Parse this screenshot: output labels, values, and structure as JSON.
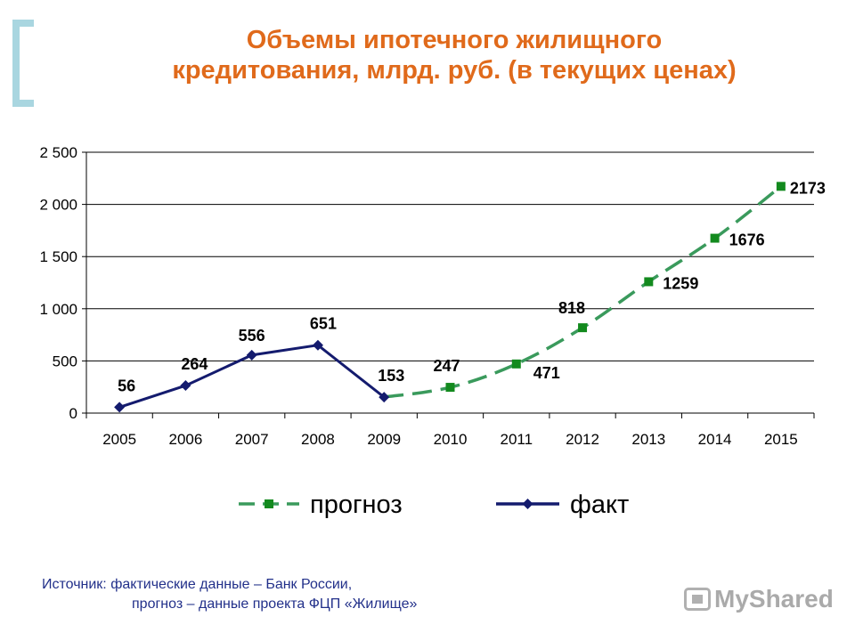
{
  "title": {
    "line1": "Объемы ипотечного жилищного",
    "line2": "кредитования, млрд. руб. (в текущих ценах)"
  },
  "source": {
    "line1": "Источник: фактические данные – Банк России,",
    "line2": "прогноз – данные проекта ФЦП «Жилище»"
  },
  "logo": {
    "text": "MyShared",
    "icon": "presentation-board-icon"
  },
  "chart_data": {
    "type": "line",
    "title": "Объемы ипотечного жилищного кредитования, млрд. руб. (в текущих ценах)",
    "categories": [
      "2005",
      "2006",
      "2007",
      "2008",
      "2009",
      "2010",
      "2011",
      "2012",
      "2013",
      "2014",
      "2015"
    ],
    "ylim": [
      0,
      2500
    ],
    "yticks": [
      0,
      500,
      1000,
      1500,
      2000,
      2500
    ],
    "ytick_labels": [
      "0",
      "500",
      "1 000",
      "1 500",
      "2 000",
      "2 500"
    ],
    "grid": true,
    "legend": "bottom",
    "series": [
      {
        "name": "прогноз",
        "color": "#3a9a5c",
        "marker": "square",
        "marker_color": "#138a1e",
        "dash": true,
        "values": [
          null,
          null,
          null,
          null,
          153,
          247,
          471,
          818,
          1259,
          1676,
          2173
        ],
        "labels": [
          null,
          null,
          null,
          null,
          null,
          "247",
          "471",
          "818",
          "1259",
          "1676",
          "2173"
        ]
      },
      {
        "name": "факт",
        "color": "#141b6e",
        "marker": "diamond",
        "marker_color": "#141b6e",
        "dash": false,
        "values": [
          56,
          264,
          556,
          651,
          153,
          null,
          null,
          null,
          null,
          null,
          null
        ],
        "labels": [
          "56",
          "264",
          "556",
          "651",
          "153",
          null,
          null,
          null,
          null,
          null,
          null
        ]
      }
    ]
  }
}
